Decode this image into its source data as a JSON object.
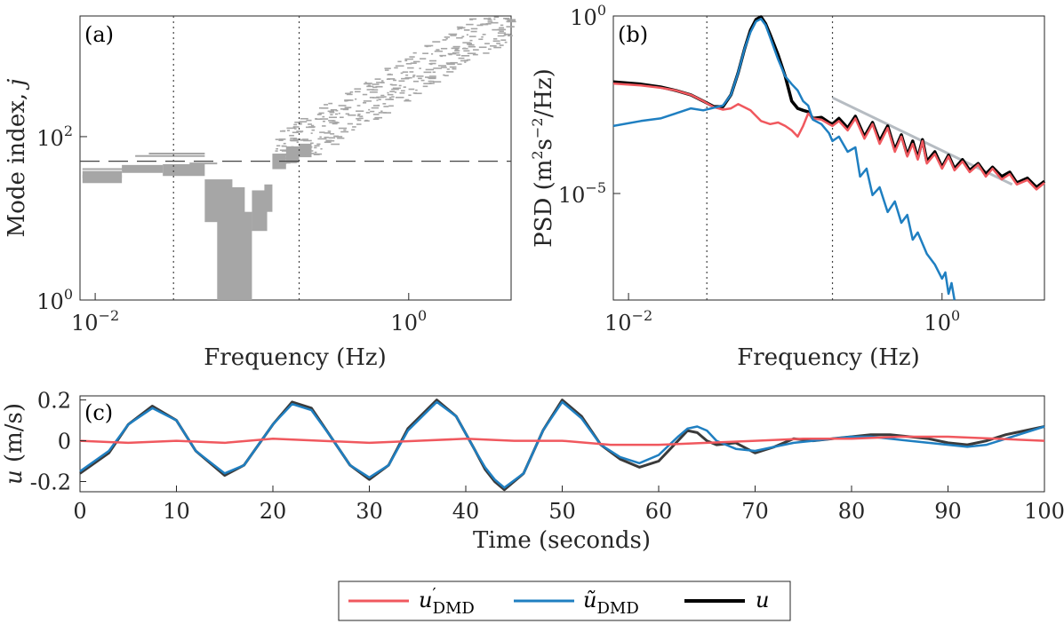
{
  "colors": {
    "red": "#f0585e",
    "blue": "#1f7fc1",
    "black": "#000000",
    "dark": "#3a3a3a",
    "gray": "#a6a6a6",
    "ref_line": "#b6bcc2"
  },
  "chart_data": [
    {
      "panel": "(a)",
      "type": "scatter",
      "xscale": "log",
      "yscale": "log",
      "xlabel": "Frequency (Hz)",
      "ylabel_main": "Mode index, ",
      "ylabel_var": "j",
      "xlim": [
        0.008,
        4.5
      ],
      "ylim": [
        1,
        3000
      ],
      "xticks": [
        {
          "base": "10",
          "exp": "−2",
          "value": 0.01
        },
        {
          "base": "10",
          "exp": "0",
          "value": 1
        }
      ],
      "yticks": [
        {
          "base": "10",
          "exp": "0",
          "value": 1
        },
        {
          "base": "10",
          "exp": "2",
          "value": 100
        }
      ],
      "vlines": [
        0.0316,
        0.2
      ],
      "hline": 50,
      "blocks": [
        {
          "f0": 0.0083,
          "f1": 0.0148,
          "j0": 27,
          "j1": 34
        },
        {
          "f0": 0.0083,
          "f1": 0.0148,
          "j0": 31,
          "j1": 38
        },
        {
          "f0": 0.0148,
          "f1": 0.027,
          "j0": 36,
          "j1": 45
        },
        {
          "f0": 0.027,
          "f1": 0.05,
          "j0": 33,
          "j1": 46
        },
        {
          "f0": 0.05,
          "f1": 0.075,
          "j0": 9,
          "j1": 30
        },
        {
          "f0": 0.075,
          "f1": 0.1,
          "j0": 1,
          "j1": 12
        },
        {
          "f0": 0.06,
          "f1": 0.09,
          "j0": 1,
          "j1": 24
        },
        {
          "f0": 0.1,
          "f1": 0.125,
          "j0": 7,
          "j1": 22
        },
        {
          "f0": 0.12,
          "f1": 0.135,
          "j0": 12,
          "j1": 26
        },
        {
          "f0": 0.135,
          "f1": 0.165,
          "j0": 40,
          "j1": 62
        },
        {
          "f0": 0.165,
          "f1": 0.2,
          "j0": 48,
          "j1": 76
        },
        {
          "f0": 0.2,
          "f1": 0.24,
          "j0": 56,
          "j1": 82
        }
      ],
      "streaks": [
        {
          "f0": 0.0083,
          "f1": 0.018,
          "j": 40
        },
        {
          "f0": 0.018,
          "f1": 0.05,
          "j": 58
        },
        {
          "f0": 0.022,
          "f1": 0.05,
          "j": 62
        },
        {
          "f0": 0.04,
          "f1": 0.06,
          "j": 47
        }
      ]
    },
    {
      "panel": "(b)",
      "type": "line",
      "xscale": "log",
      "yscale": "log",
      "xlabel": "Frequency (Hz)",
      "ylabel_pre": "PSD (m",
      "ylabel_mid1": "s",
      "ylabel_mid2": "/Hz)",
      "ylabel_sup1": "2",
      "ylabel_sup2": "−2",
      "xlim": [
        0.008,
        4.5
      ],
      "ylim": [
        1e-08,
        1
      ],
      "xticks": [
        {
          "base": "10",
          "exp": "−2",
          "value": 0.01
        },
        {
          "base": "10",
          "exp": "0",
          "value": 1
        }
      ],
      "yticks": [
        {
          "base": "10",
          "exp": "−5",
          "value": 1e-05
        },
        {
          "base": "10",
          "exp": "0",
          "value": 1
        }
      ],
      "vlines": [
        0.0316,
        0.2
      ],
      "reference_line": {
        "x": [
          0.2,
          2.8
        ],
        "y": [
          0.005,
          1.8e-05
        ]
      },
      "series": [
        {
          "name": "u_DMD prime",
          "color_key": "red",
          "x": [
            0.008,
            0.012,
            0.016,
            0.02,
            0.025,
            0.03,
            0.035,
            0.04,
            0.045,
            0.05,
            0.06,
            0.07,
            0.08,
            0.09,
            0.1,
            0.11,
            0.12,
            0.13,
            0.14,
            0.15,
            0.17,
            0.19,
            0.2,
            0.22,
            0.25,
            0.28,
            0.32,
            0.36,
            0.4,
            0.45,
            0.5,
            0.55,
            0.6,
            0.65,
            0.7,
            0.75,
            0.8,
            0.9,
            1.0,
            1.1,
            1.2,
            1.35,
            1.5,
            1.7,
            1.9,
            2.1,
            2.4,
            2.7,
            3.0,
            3.5,
            4.0,
            4.5
          ],
          "y": [
            0.0125,
            0.011,
            0.0095,
            0.008,
            0.006,
            0.004,
            0.0027,
            0.0023,
            0.0025,
            0.0033,
            0.0022,
            0.0011,
            0.0009,
            0.001,
            0.0008,
            0.0006,
            0.0004,
            0.0008,
            0.0018,
            0.0013,
            0.0012,
            0.0009,
            0.0008,
            0.0011,
            0.0006,
            0.0013,
            0.00035,
            0.0009,
            0.00025,
            0.0007,
            0.00015,
            0.0004,
            0.00011,
            0.00025,
            9e-05,
            0.0003,
            7e-05,
            0.00013,
            5e-05,
            0.00011,
            4.5e-05,
            8e-05,
            4e-05,
            6.5e-05,
            3e-05,
            5e-05,
            2.5e-05,
            3.5e-05,
            1.8e-05,
            2.4e-05,
            1.3e-05,
            2e-05
          ]
        },
        {
          "name": "u_DMD tilde",
          "color_key": "blue",
          "x": [
            0.008,
            0.012,
            0.016,
            0.02,
            0.025,
            0.03,
            0.035,
            0.04,
            0.045,
            0.05,
            0.055,
            0.06,
            0.065,
            0.07,
            0.075,
            0.08,
            0.09,
            0.1,
            0.11,
            0.12,
            0.13,
            0.14,
            0.15,
            0.17,
            0.19,
            0.2,
            0.22,
            0.25,
            0.28,
            0.3,
            0.33,
            0.36,
            0.4,
            0.45,
            0.5,
            0.55,
            0.6,
            0.65,
            0.7,
            0.8,
            0.9,
            1.0,
            1.05,
            1.1,
            1.15,
            1.2
          ],
          "y": [
            0.0008,
            0.0011,
            0.0013,
            0.0018,
            0.0025,
            0.0022,
            0.0026,
            0.003,
            0.006,
            0.025,
            0.12,
            0.35,
            0.7,
            0.83,
            0.55,
            0.25,
            0.06,
            0.02,
            0.012,
            0.008,
            0.004,
            0.003,
            0.0012,
            0.0009,
            0.0005,
            0.0003,
            0.0004,
            0.00015,
            0.0002,
            3e-05,
            5e-05,
            9e-06,
            1.5e-05,
            3e-06,
            6e-06,
            1.5e-06,
            2.5e-06,
            5e-07,
            8e-07,
            2e-07,
            1e-07,
            4e-08,
            6e-08,
            1.5e-08,
            3e-08,
            1e-08
          ]
        },
        {
          "name": "u",
          "color_key": "black",
          "x": [
            0.008,
            0.012,
            0.016,
            0.02,
            0.025,
            0.03,
            0.035,
            0.04,
            0.045,
            0.05,
            0.055,
            0.06,
            0.065,
            0.07,
            0.075,
            0.08,
            0.09,
            0.1,
            0.11,
            0.12,
            0.13,
            0.14,
            0.15,
            0.17,
            0.19,
            0.2,
            0.22,
            0.25,
            0.28,
            0.32,
            0.36,
            0.4,
            0.45,
            0.5,
            0.55,
            0.6,
            0.65,
            0.7,
            0.75,
            0.8,
            0.9,
            1.0,
            1.1,
            1.2,
            1.35,
            1.5,
            1.7,
            1.9,
            2.1,
            2.4,
            2.7,
            3.0,
            3.5,
            4.0,
            4.5
          ],
          "y": [
            0.014,
            0.012,
            0.01,
            0.008,
            0.006,
            0.004,
            0.0028,
            0.0028,
            0.006,
            0.025,
            0.12,
            0.4,
            0.8,
            0.95,
            0.6,
            0.3,
            0.08,
            0.02,
            0.004,
            0.0025,
            0.0022,
            0.002,
            0.0013,
            0.0014,
            0.001,
            0.0009,
            0.0013,
            0.0007,
            0.0015,
            0.0004,
            0.001,
            0.0003,
            0.0008,
            0.00017,
            0.00045,
            0.00012,
            0.0003,
            0.0001,
            0.00033,
            8e-05,
            0.00015,
            5.5e-05,
            0.00012,
            5e-05,
            9e-05,
            4.5e-05,
            7e-05,
            3.5e-05,
            5.5e-05,
            3e-05,
            4e-05,
            2e-05,
            2.7e-05,
            1.5e-05,
            2.2e-05
          ]
        }
      ]
    },
    {
      "panel": "(c)",
      "type": "line",
      "xlabel": "Time (seconds)",
      "ylabel_var": "u",
      "ylabel_unit": " (m/s)",
      "xlim": [
        0,
        100
      ],
      "ylim": [
        -0.25,
        0.22
      ],
      "xticks": [
        "0",
        "10",
        "20",
        "30",
        "40",
        "50",
        "60",
        "70",
        "80",
        "90",
        "100"
      ],
      "yticks": [
        {
          "label": "0.2",
          "value": 0.2
        },
        {
          "label": "0",
          "value": 0
        },
        {
          "label": "-0.2",
          "value": -0.2
        }
      ],
      "series": [
        {
          "name": "u",
          "color_key": "dark",
          "x": [
            0,
            3,
            5,
            7.5,
            10,
            12,
            15,
            17,
            20,
            22,
            24,
            26,
            28,
            30,
            32,
            34,
            37,
            39,
            41,
            42,
            43,
            44,
            46,
            48,
            50,
            52,
            54,
            56,
            58,
            60,
            62,
            63,
            64,
            65,
            66,
            68,
            70,
            72,
            74,
            76,
            78,
            80,
            82,
            84,
            86,
            88,
            90,
            92,
            94,
            96,
            98,
            100
          ],
          "y": [
            -0.16,
            -0.06,
            0.08,
            0.17,
            0.1,
            -0.05,
            -0.17,
            -0.12,
            0.08,
            0.19,
            0.16,
            0.02,
            -0.12,
            -0.19,
            -0.12,
            0.06,
            0.2,
            0.12,
            -0.05,
            -0.14,
            -0.2,
            -0.24,
            -0.16,
            0.05,
            0.2,
            0.12,
            -0.02,
            -0.09,
            -0.13,
            -0.1,
            0.0,
            0.05,
            0.04,
            0.0,
            -0.02,
            -0.01,
            -0.06,
            -0.03,
            0.01,
            0.0,
            0.01,
            0.02,
            0.03,
            0.03,
            0.02,
            0.01,
            -0.01,
            -0.02,
            0.0,
            0.03,
            0.05,
            0.07
          ]
        },
        {
          "name": "u_DMD tilde",
          "color_key": "blue",
          "x": [
            0,
            3,
            5,
            7.5,
            10,
            12,
            15,
            17,
            20,
            22,
            24,
            26,
            28,
            30,
            32,
            34,
            37,
            39,
            41,
            42,
            43,
            44,
            46,
            48,
            50,
            52,
            54,
            56,
            58,
            60,
            62,
            63,
            64,
            65,
            66,
            68,
            70,
            72,
            74,
            76,
            78,
            80,
            82,
            84,
            86,
            88,
            90,
            92,
            94,
            96,
            98,
            100
          ],
          "y": [
            -0.15,
            -0.05,
            0.08,
            0.16,
            0.1,
            -0.05,
            -0.16,
            -0.12,
            0.08,
            0.18,
            0.15,
            0.02,
            -0.12,
            -0.18,
            -0.12,
            0.05,
            0.19,
            0.12,
            -0.05,
            -0.13,
            -0.19,
            -0.23,
            -0.16,
            0.05,
            0.19,
            0.11,
            -0.02,
            -0.08,
            -0.11,
            -0.07,
            0.02,
            0.06,
            0.07,
            0.05,
            0.0,
            -0.04,
            -0.05,
            -0.03,
            -0.01,
            0.0,
            0.01,
            0.02,
            0.02,
            0.01,
            0.0,
            -0.01,
            -0.02,
            -0.03,
            -0.02,
            0.01,
            0.04,
            0.07
          ]
        },
        {
          "name": "u_DMD prime",
          "color_key": "red",
          "x": [
            0,
            5,
            10,
            15,
            20,
            25,
            30,
            35,
            40,
            45,
            50,
            55,
            60,
            65,
            70,
            75,
            80,
            85,
            90,
            95,
            100
          ],
          "y": [
            0.0,
            -0.01,
            0.0,
            -0.01,
            0.01,
            0.0,
            -0.01,
            0.0,
            0.01,
            0.0,
            0.0,
            -0.02,
            -0.02,
            -0.01,
            0.0,
            0.01,
            0.01,
            0.02,
            0.02,
            0.01,
            0.0
          ]
        }
      ]
    }
  ],
  "legend": {
    "items": [
      {
        "color_key": "red",
        "main": "u",
        "prime": "′",
        "sub": "DMD"
      },
      {
        "color_key": "blue",
        "main": "ũ",
        "prime": "",
        "sub": "DMD"
      },
      {
        "color_key": "black",
        "main": "u",
        "prime": "",
        "sub": ""
      }
    ]
  }
}
